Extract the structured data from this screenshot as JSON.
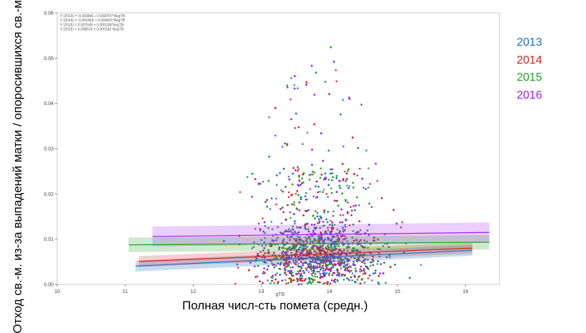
{
  "chart_data": {
    "type": "scatter",
    "title": "",
    "xlabel": "Полная числ-сть помета (средн.)",
    "xlabel_inner": "gTB",
    "ylabel": "Отход св.-м. из-за выпадений матки / опоросившихся св.-м.",
    "xlim": [
      10,
      16.5
    ],
    "ylim": [
      0,
      0.06
    ],
    "xticks": [
      "10",
      "11",
      "12",
      "13",
      "14",
      "15",
      "16"
    ],
    "yticks": [
      "0.00",
      "0.01",
      "0.02",
      "0.03",
      "0.04",
      "0.05",
      "0.06"
    ],
    "grid": false,
    "legend_position": "right",
    "equations": [
      "Y (2013) = -0.003841 + 0.000707*AvgTB",
      "Y (2014) = -0.001662 + 0.000601*AvgTB",
      "Y (2015) = 0.007549 + 0.000108*AvgTB",
      "Y (2016) = 0.008524 + 0.000181*AvgTB"
    ],
    "series": [
      {
        "name": "2013",
        "color": "#1f6fc4",
        "intercept": -0.003841,
        "slope": 0.000707,
        "x_range": [
          11.15,
          16.1
        ],
        "band": 0.0012
      },
      {
        "name": "2014",
        "color": "#d62020",
        "intercept": -0.001662,
        "slope": 0.000601,
        "x_range": [
          11.2,
          16.1
        ],
        "band": 0.0012
      },
      {
        "name": "2015",
        "color": "#22a022",
        "intercept": 0.007549,
        "slope": 0.000108,
        "x_range": [
          11.05,
          16.35
        ],
        "band": 0.0016
      },
      {
        "name": "2016",
        "color": "#a020f0",
        "intercept": 0.008524,
        "slope": 0.000181,
        "x_range": [
          11.4,
          16.35
        ],
        "band": 0.0022
      }
    ]
  }
}
